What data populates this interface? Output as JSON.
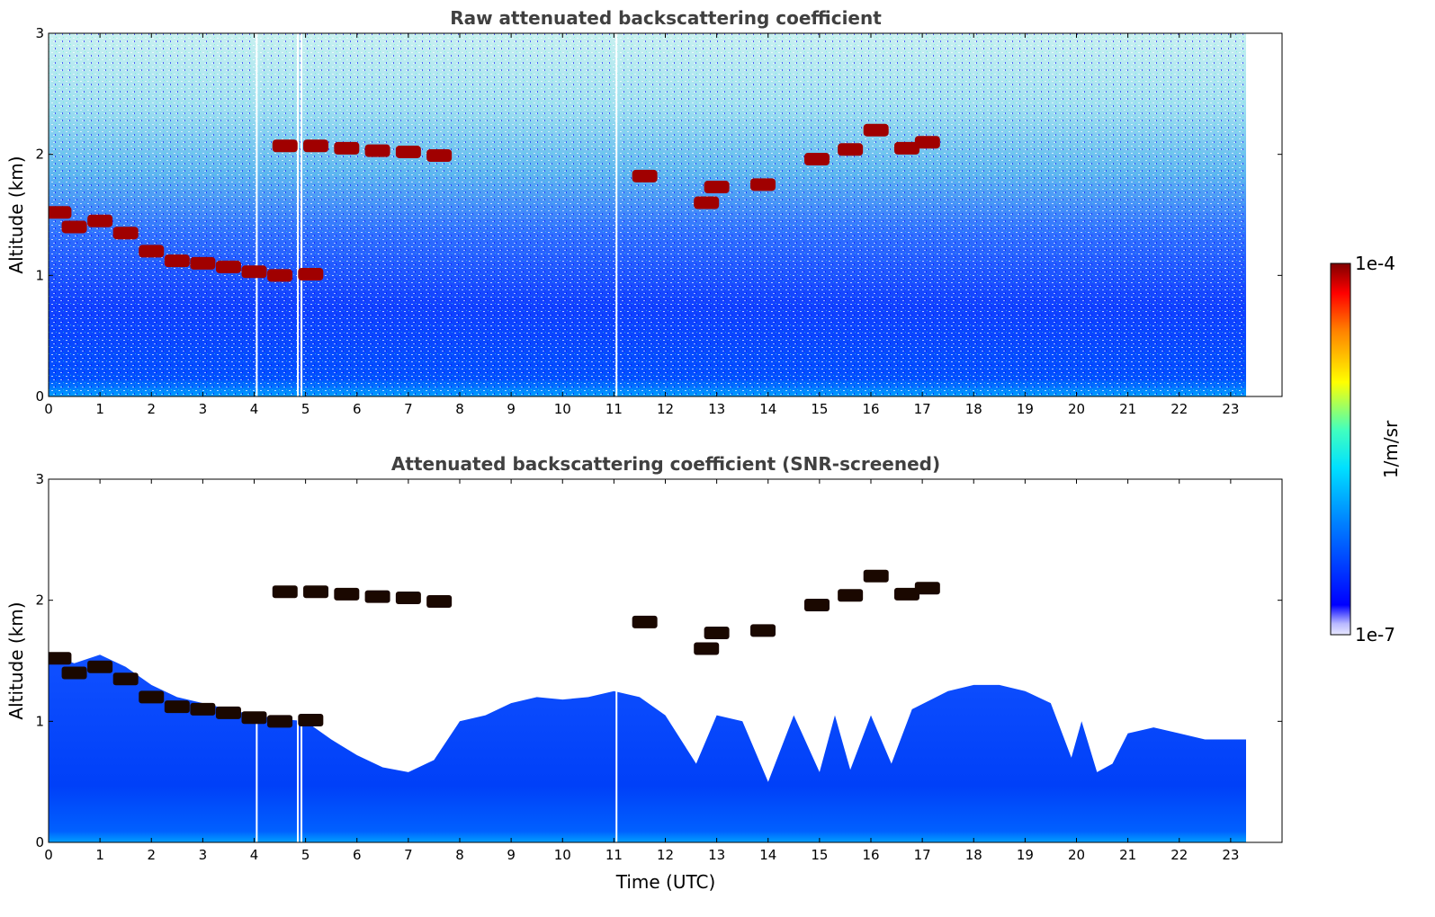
{
  "chart_data": [
    {
      "type": "heatmap",
      "title": "Raw attenuated backscattering coefficient",
      "xlabel": "",
      "ylabel": "Altitude (km)",
      "xlim": [
        0,
        24
      ],
      "ylim": [
        0,
        3
      ],
      "x_ticks": [
        "0",
        "1",
        "2",
        "3",
        "4",
        "5",
        "6",
        "7",
        "8",
        "9",
        "10",
        "11",
        "12",
        "13",
        "14",
        "15",
        "16",
        "17",
        "18",
        "19",
        "20",
        "21",
        "22",
        "23"
      ],
      "y_ticks": [
        "0",
        "1",
        "2",
        "3"
      ],
      "data_end_time": 23.3,
      "gaps": [
        4.05,
        4.85,
        4.92,
        11.05
      ],
      "cloud_layers": [
        {
          "t": 0.2,
          "alt": 1.52
        },
        {
          "t": 0.5,
          "alt": 1.4
        },
        {
          "t": 1.0,
          "alt": 1.45
        },
        {
          "t": 1.5,
          "alt": 1.35
        },
        {
          "t": 2.0,
          "alt": 1.2
        },
        {
          "t": 2.5,
          "alt": 1.12
        },
        {
          "t": 3.0,
          "alt": 1.1
        },
        {
          "t": 3.5,
          "alt": 1.07
        },
        {
          "t": 4.0,
          "alt": 1.03
        },
        {
          "t": 4.5,
          "alt": 1.0
        },
        {
          "t": 5.1,
          "alt": 1.01
        },
        {
          "t": 4.6,
          "alt": 2.07
        },
        {
          "t": 5.2,
          "alt": 2.07
        },
        {
          "t": 5.8,
          "alt": 2.05
        },
        {
          "t": 6.4,
          "alt": 2.03
        },
        {
          "t": 7.0,
          "alt": 2.02
        },
        {
          "t": 7.6,
          "alt": 1.99
        },
        {
          "t": 11.6,
          "alt": 1.82
        },
        {
          "t": 12.8,
          "alt": 1.6
        },
        {
          "t": 13.0,
          "alt": 1.73
        },
        {
          "t": 13.9,
          "alt": 1.75
        },
        {
          "t": 14.95,
          "alt": 1.96
        },
        {
          "t": 15.6,
          "alt": 2.04
        },
        {
          "t": 16.1,
          "alt": 2.2
        },
        {
          "t": 16.7,
          "alt": 2.05
        },
        {
          "t": 17.1,
          "alt": 2.1
        }
      ]
    },
    {
      "type": "heatmap",
      "title": "Attenuated backscattering coefficient (SNR-screened)",
      "xlabel": "Time (UTC)",
      "ylabel": "Altitude (km)",
      "xlim": [
        0,
        24
      ],
      "ylim": [
        0,
        3
      ],
      "x_ticks": [
        "0",
        "1",
        "2",
        "3",
        "4",
        "5",
        "6",
        "7",
        "8",
        "9",
        "10",
        "11",
        "12",
        "13",
        "14",
        "15",
        "16",
        "17",
        "18",
        "19",
        "20",
        "21",
        "22",
        "23"
      ],
      "y_ticks": [
        "0",
        "1",
        "2",
        "3"
      ],
      "boundary_layer_top": [
        {
          "t": 0.0,
          "alt": 1.55
        },
        {
          "t": 0.5,
          "alt": 1.48
        },
        {
          "t": 1.0,
          "alt": 1.55
        },
        {
          "t": 1.5,
          "alt": 1.45
        },
        {
          "t": 2.0,
          "alt": 1.3
        },
        {
          "t": 2.5,
          "alt": 1.2
        },
        {
          "t": 3.0,
          "alt": 1.15
        },
        {
          "t": 3.5,
          "alt": 1.1
        },
        {
          "t": 4.0,
          "alt": 1.05
        },
        {
          "t": 4.5,
          "alt": 1.02
        },
        {
          "t": 5.0,
          "alt": 1.0
        },
        {
          "t": 5.5,
          "alt": 0.85
        },
        {
          "t": 6.0,
          "alt": 0.72
        },
        {
          "t": 6.5,
          "alt": 0.62
        },
        {
          "t": 7.0,
          "alt": 0.58
        },
        {
          "t": 7.5,
          "alt": 0.68
        },
        {
          "t": 8.0,
          "alt": 1.0
        },
        {
          "t": 8.5,
          "alt": 1.05
        },
        {
          "t": 9.0,
          "alt": 1.15
        },
        {
          "t": 9.5,
          "alt": 1.2
        },
        {
          "t": 10.0,
          "alt": 1.18
        },
        {
          "t": 10.5,
          "alt": 1.2
        },
        {
          "t": 11.0,
          "alt": 1.25
        },
        {
          "t": 11.5,
          "alt": 1.2
        },
        {
          "t": 12.0,
          "alt": 1.05
        },
        {
          "t": 12.6,
          "alt": 0.65
        },
        {
          "t": 13.0,
          "alt": 1.05
        },
        {
          "t": 13.5,
          "alt": 1.0
        },
        {
          "t": 14.0,
          "alt": 0.5
        },
        {
          "t": 14.5,
          "alt": 1.05
        },
        {
          "t": 15.0,
          "alt": 0.58
        },
        {
          "t": 15.3,
          "alt": 1.05
        },
        {
          "t": 15.6,
          "alt": 0.6
        },
        {
          "t": 16.0,
          "alt": 1.05
        },
        {
          "t": 16.4,
          "alt": 0.65
        },
        {
          "t": 16.8,
          "alt": 1.1
        },
        {
          "t": 17.5,
          "alt": 1.25
        },
        {
          "t": 18.0,
          "alt": 1.3
        },
        {
          "t": 18.5,
          "alt": 1.3
        },
        {
          "t": 19.0,
          "alt": 1.25
        },
        {
          "t": 19.5,
          "alt": 1.15
        },
        {
          "t": 19.9,
          "alt": 0.7
        },
        {
          "t": 20.1,
          "alt": 1.0
        },
        {
          "t": 20.4,
          "alt": 0.58
        },
        {
          "t": 20.7,
          "alt": 0.65
        },
        {
          "t": 21.0,
          "alt": 0.9
        },
        {
          "t": 21.5,
          "alt": 0.95
        },
        {
          "t": 22.0,
          "alt": 0.9
        },
        {
          "t": 22.5,
          "alt": 0.85
        },
        {
          "t": 23.0,
          "alt": 0.85
        },
        {
          "t": 23.3,
          "alt": 0.85
        }
      ]
    }
  ],
  "colorbar": {
    "label": "1/m/sr",
    "max_label": "1e-4",
    "min_label": "1e-7",
    "colormap": "jet",
    "scale": "log"
  }
}
